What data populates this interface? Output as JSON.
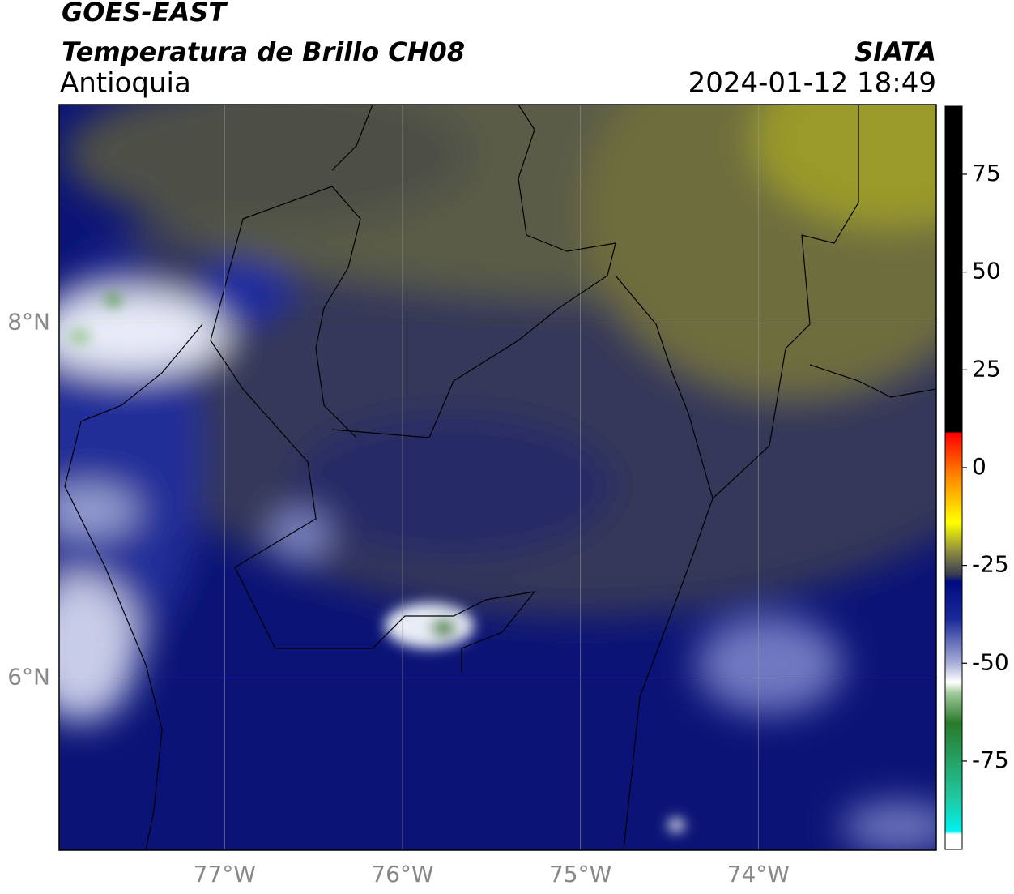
{
  "header": {
    "title": "GOES-EAST",
    "subtitle": "Temperatura de Brillo CH08",
    "region": "Antioquia",
    "source": "SIATA",
    "datetime": "2024-01-12 18:49"
  },
  "map": {
    "lonlim": [
      -77.93,
      -73
    ],
    "latlim": [
      5.03,
      9.23
    ],
    "xticks": [
      {
        "value": -77,
        "label": "77°W"
      },
      {
        "value": -76,
        "label": "76°W"
      },
      {
        "value": -75,
        "label": "75°W"
      },
      {
        "value": -74,
        "label": "74°W"
      }
    ],
    "yticks": [
      {
        "value": 8,
        "label": "8°N"
      },
      {
        "value": 6,
        "label": "6°N"
      }
    ],
    "grid": true
  },
  "colorbar": {
    "lim": [
      -97.6,
      92.4
    ],
    "ticks": [
      75,
      50,
      25,
      0,
      -25,
      -50,
      -75
    ]
  }
}
